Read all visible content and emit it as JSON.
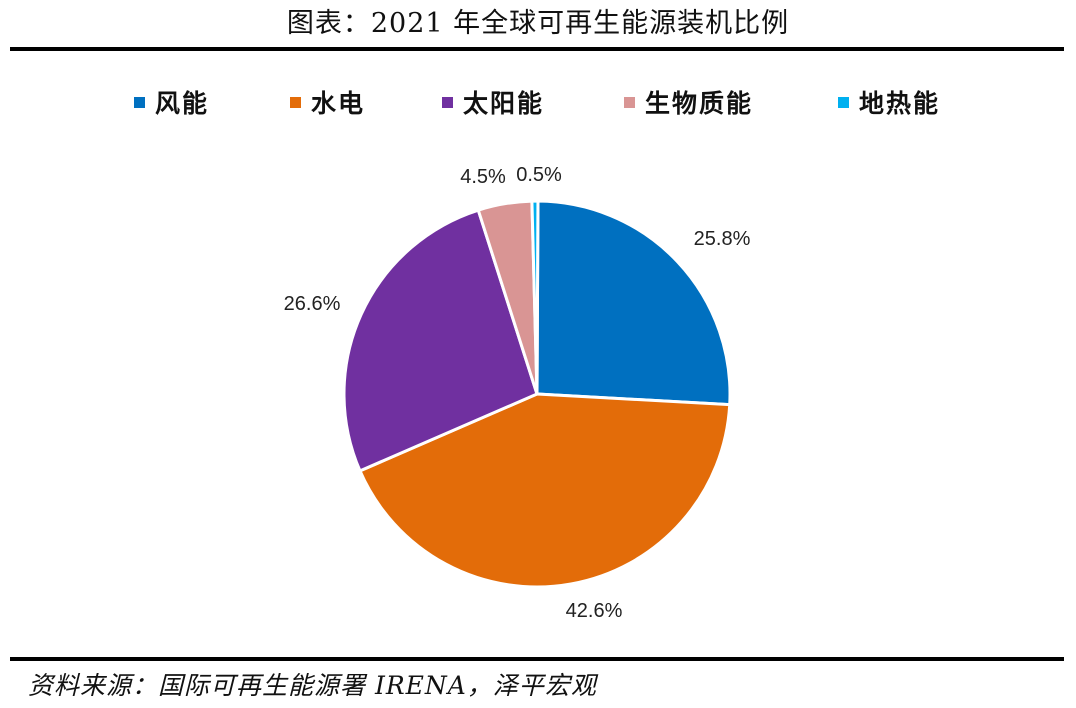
{
  "title": "图表：2021 年全球可再生能源装机比例",
  "source": "资料来源：国际可再生能源署 IRENA，泽平宏观",
  "chart_data": {
    "type": "pie",
    "legend_position": "top",
    "slices": [
      {
        "name": "风能",
        "value": 25.8,
        "label": "25.8%",
        "color": "#0070C0"
      },
      {
        "name": "水电",
        "value": 42.6,
        "label": "42.6%",
        "color": "#E36C09"
      },
      {
        "name": "太阳能",
        "value": 26.6,
        "label": "26.6%",
        "color": "#7030A0"
      },
      {
        "name": "生物质能",
        "value": 4.5,
        "label": "4.5%",
        "color": "#D99594"
      },
      {
        "name": "地热能",
        "value": 0.5,
        "label": "0.5%",
        "color": "#00B0F0"
      }
    ]
  }
}
